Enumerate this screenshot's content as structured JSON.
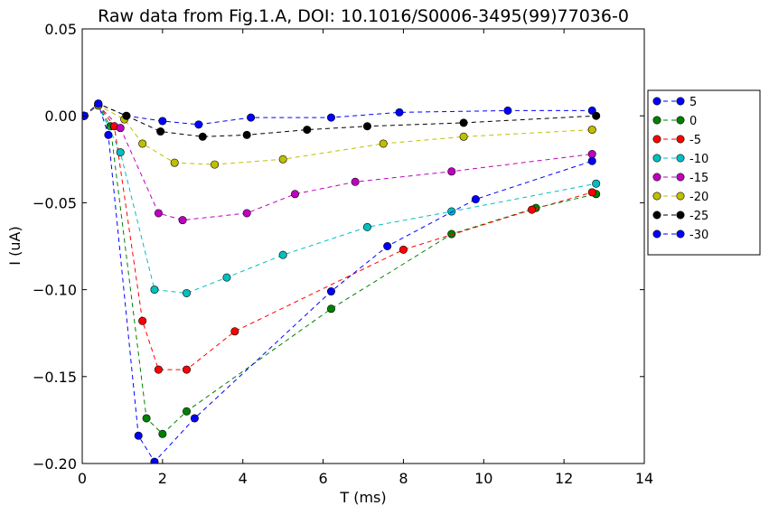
{
  "chart_data": {
    "type": "line",
    "title": "Raw data from Fig.1.A, DOI: 10.1016/S0006-3495(99)77036-0",
    "xlabel": "T (ms)",
    "ylabel": "I (uA)",
    "xlim": [
      0,
      14
    ],
    "ylim": [
      -0.2,
      0.05
    ],
    "x_ticks": [
      0,
      2,
      4,
      6,
      8,
      10,
      12,
      14
    ],
    "y_ticks": [
      -0.2,
      -0.15,
      -0.1,
      -0.05,
      0.0,
      0.05
    ],
    "x_tick_labels": [
      "0",
      "2",
      "4",
      "6",
      "8",
      "10",
      "12",
      "14"
    ],
    "y_tick_labels": [
      "−0.20",
      "−0.15",
      "−0.10",
      "−0.05",
      "0.00",
      "0.05"
    ],
    "grid": false,
    "legend_position": "right-outside",
    "line_style": "dashed",
    "marker": "circle",
    "series": [
      {
        "name": "5",
        "color": "#0000ff",
        "points": [
          [
            0.05,
            0.0
          ],
          [
            0.4,
            0.007
          ],
          [
            1.1,
            0.0
          ],
          [
            2.0,
            -0.003
          ],
          [
            2.9,
            -0.005
          ],
          [
            4.2,
            -0.001
          ],
          [
            6.2,
            -0.001
          ],
          [
            7.9,
            0.002
          ],
          [
            10.6,
            0.003
          ],
          [
            12.7,
            0.003
          ]
        ]
      },
      {
        "name": "0",
        "color": "#008000",
        "points": [
          [
            0.05,
            0.0
          ],
          [
            0.4,
            0.006
          ],
          [
            0.7,
            -0.006
          ],
          [
            1.6,
            -0.174
          ],
          [
            2.0,
            -0.183
          ],
          [
            2.6,
            -0.17
          ],
          [
            6.2,
            -0.111
          ],
          [
            9.2,
            -0.068
          ],
          [
            11.3,
            -0.053
          ],
          [
            12.8,
            -0.045
          ]
        ]
      },
      {
        "name": "-5",
        "color": "#ff0000",
        "points": [
          [
            0.05,
            0.0
          ],
          [
            0.4,
            0.006
          ],
          [
            0.8,
            -0.006
          ],
          [
            1.5,
            -0.118
          ],
          [
            1.9,
            -0.146
          ],
          [
            2.6,
            -0.146
          ],
          [
            3.8,
            -0.124
          ],
          [
            8.0,
            -0.077
          ],
          [
            11.2,
            -0.054
          ],
          [
            12.7,
            -0.044
          ]
        ]
      },
      {
        "name": "-10",
        "color": "#00bfbf",
        "points": [
          [
            0.05,
            0.0
          ],
          [
            0.4,
            0.006
          ],
          [
            0.95,
            -0.021
          ],
          [
            1.8,
            -0.1
          ],
          [
            2.6,
            -0.102
          ],
          [
            3.6,
            -0.093
          ],
          [
            5.0,
            -0.08
          ],
          [
            7.1,
            -0.064
          ],
          [
            9.2,
            -0.055
          ],
          [
            12.8,
            -0.039
          ]
        ]
      },
      {
        "name": "-15",
        "color": "#bf00bf",
        "points": [
          [
            0.05,
            0.0
          ],
          [
            0.4,
            0.006
          ],
          [
            0.95,
            -0.007
          ],
          [
            1.9,
            -0.056
          ],
          [
            2.5,
            -0.06
          ],
          [
            4.1,
            -0.056
          ],
          [
            5.3,
            -0.045
          ],
          [
            6.8,
            -0.038
          ],
          [
            9.2,
            -0.032
          ],
          [
            12.7,
            -0.022
          ]
        ]
      },
      {
        "name": "-20",
        "color": "#bfbf00",
        "points": [
          [
            0.05,
            0.0
          ],
          [
            0.4,
            0.006
          ],
          [
            1.05,
            -0.002
          ],
          [
            1.5,
            -0.016
          ],
          [
            2.3,
            -0.027
          ],
          [
            3.3,
            -0.028
          ],
          [
            5.0,
            -0.025
          ],
          [
            7.5,
            -0.016
          ],
          [
            9.5,
            -0.012
          ],
          [
            12.7,
            -0.008
          ]
        ]
      },
      {
        "name": "-25",
        "color": "#000000",
        "points": [
          [
            0.05,
            0.0
          ],
          [
            0.4,
            0.007
          ],
          [
            1.1,
            0.0
          ],
          [
            1.95,
            -0.009
          ],
          [
            3.0,
            -0.012
          ],
          [
            4.1,
            -0.011
          ],
          [
            5.6,
            -0.008
          ],
          [
            7.1,
            -0.006
          ],
          [
            9.5,
            -0.004
          ],
          [
            12.8,
            0.0
          ]
        ]
      },
      {
        "name": "-30",
        "color": "#0000ff",
        "points": [
          [
            0.05,
            0.0
          ],
          [
            0.4,
            0.007
          ],
          [
            0.65,
            -0.011
          ],
          [
            1.4,
            -0.184
          ],
          [
            1.8,
            -0.199
          ],
          [
            2.8,
            -0.174
          ],
          [
            6.2,
            -0.101
          ],
          [
            7.6,
            -0.075
          ],
          [
            9.8,
            -0.048
          ],
          [
            12.7,
            -0.026
          ]
        ]
      }
    ]
  }
}
